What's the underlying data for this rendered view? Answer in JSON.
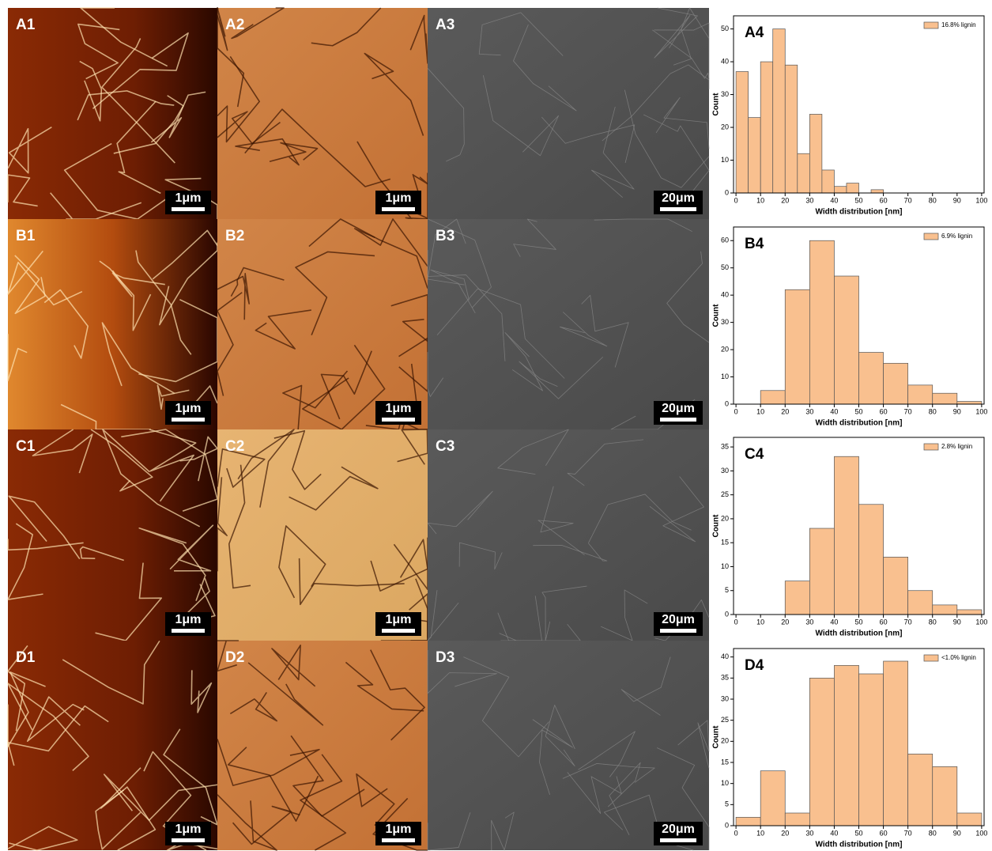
{
  "images": [
    {
      "label": "A1",
      "scale": "1μm"
    },
    {
      "label": "A2",
      "scale": "1μm"
    },
    {
      "label": "A3",
      "scale": "20μm"
    },
    {
      "label": "B1",
      "scale": "1μm"
    },
    {
      "label": "B2",
      "scale": "1μm"
    },
    {
      "label": "B3",
      "scale": "20μm"
    },
    {
      "label": "C1",
      "scale": "1μm"
    },
    {
      "label": "C2",
      "scale": "1μm"
    },
    {
      "label": "C3",
      "scale": "20μm"
    },
    {
      "label": "D1",
      "scale": "1μm"
    },
    {
      "label": "D2",
      "scale": "1μm"
    },
    {
      "label": "D3",
      "scale": "20μm"
    }
  ],
  "chart_data": [
    {
      "type": "histogram",
      "panel_label": "A4",
      "x_label": "Width distribution [nm]",
      "y_label": "Count",
      "legend": "16.8% lignin",
      "color": "#f9c08f",
      "bins": [
        0,
        5,
        10,
        15,
        20,
        25,
        30,
        35,
        40,
        45,
        50,
        55,
        60,
        65,
        70,
        75,
        80,
        85,
        90,
        95,
        100
      ],
      "counts": [
        37,
        23,
        40,
        50,
        39,
        12,
        24,
        7,
        2,
        3,
        0,
        1,
        0,
        0,
        0,
        0,
        0,
        0,
        0,
        0
      ],
      "xlim": [
        -1,
        101
      ],
      "xticks": [
        0,
        10,
        20,
        30,
        40,
        50,
        60,
        70,
        80,
        90,
        100
      ],
      "ylim": [
        0,
        54
      ],
      "yticks": [
        0,
        10,
        20,
        30,
        40,
        50
      ]
    },
    {
      "type": "histogram",
      "panel_label": "B4",
      "x_label": "Width distribution [nm]",
      "y_label": "Count",
      "legend": "6.9% lignin",
      "color": "#f9c08f",
      "bins": [
        0,
        10,
        20,
        30,
        40,
        50,
        60,
        70,
        80,
        90,
        100
      ],
      "counts": [
        0,
        5,
        42,
        60,
        47,
        19,
        15,
        7,
        4,
        1
      ],
      "xlim": [
        -1,
        101
      ],
      "xticks": [
        0,
        10,
        20,
        30,
        40,
        50,
        60,
        70,
        80,
        90,
        100
      ],
      "ylim": [
        0,
        65
      ],
      "yticks": [
        0,
        10,
        20,
        30,
        40,
        50,
        60
      ]
    },
    {
      "type": "histogram",
      "panel_label": "C4",
      "x_label": "Width distribution [nm]",
      "y_label": "Count",
      "legend": "2.8% lignin",
      "color": "#f9c08f",
      "bins": [
        0,
        10,
        20,
        30,
        40,
        50,
        60,
        70,
        80,
        90,
        100
      ],
      "counts": [
        0,
        0,
        7,
        18,
        33,
        23,
        12,
        5,
        2,
        1
      ],
      "xlim": [
        -1,
        101
      ],
      "xticks": [
        0,
        10,
        20,
        30,
        40,
        50,
        60,
        70,
        80,
        90,
        100
      ],
      "ylim": [
        0,
        37
      ],
      "yticks": [
        0,
        5,
        10,
        15,
        20,
        25,
        30,
        35
      ]
    },
    {
      "type": "histogram",
      "panel_label": "D4",
      "x_label": "Width distribution [nm]",
      "y_label": "Count",
      "legend": "<1.0% lignin",
      "color": "#f9c08f",
      "bins": [
        0,
        10,
        20,
        30,
        40,
        50,
        60,
        70,
        80,
        90,
        100
      ],
      "counts": [
        2,
        13,
        3,
        35,
        38,
        36,
        39,
        17,
        14,
        3
      ],
      "xlim": [
        -1,
        101
      ],
      "xticks": [
        0,
        10,
        20,
        30,
        40,
        50,
        60,
        70,
        80,
        90,
        100
      ],
      "ylim": [
        0,
        42
      ],
      "yticks": [
        0,
        5,
        10,
        15,
        20,
        25,
        30,
        35,
        40
      ]
    }
  ]
}
